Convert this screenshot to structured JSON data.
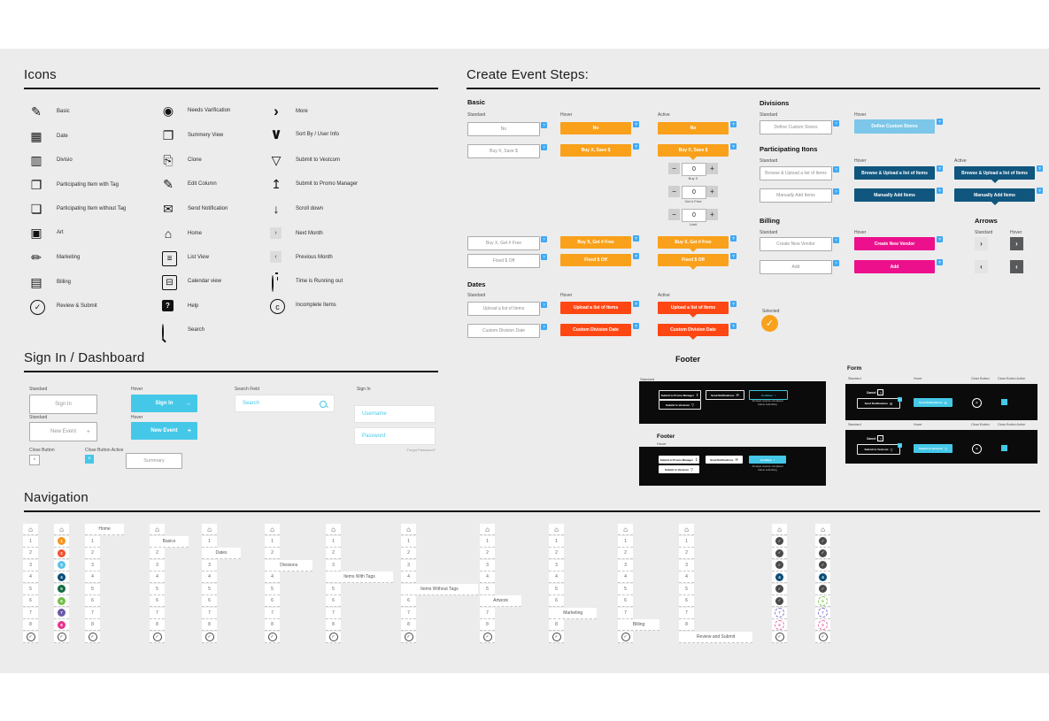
{
  "colors": {
    "cyan": "#45C8E8",
    "badge_blue": "#3FA9F5",
    "orange": "#F9A11B",
    "orange_red": "#FF4713",
    "light_blue": "#7CC7E9",
    "dark_blue": "#10567E",
    "magenta": "#EC108C",
    "arrow_gray": "#58595B",
    "navy": "#0B4E79",
    "done_gray": "#4A4A4A"
  },
  "icons": {
    "title": "Icons",
    "col1": [
      {
        "name": "basic-icon",
        "type": "glyph",
        "glyph": "✎",
        "label": "Basic"
      },
      {
        "name": "date-icon",
        "type": "glyph",
        "glyph": "▦",
        "label": "Date"
      },
      {
        "name": "divisio-icon",
        "type": "glyph",
        "glyph": "▥",
        "label": "Divisio"
      },
      {
        "name": "participating-item-with-tag-icon",
        "type": "glyph",
        "glyph": "❐",
        "label": "Participating Item with Tag"
      },
      {
        "name": "participating-item-without-tag-icon",
        "type": "glyph",
        "glyph": "❏",
        "label": "Participating Item without Tag"
      },
      {
        "name": "art-icon",
        "type": "glyph",
        "glyph": "▣",
        "label": "Art"
      },
      {
        "name": "marketing-icon",
        "type": "glyph",
        "glyph": "✏",
        "label": "Marketing"
      },
      {
        "name": "billing-icon",
        "type": "glyph",
        "glyph": "▤",
        "label": "Billing"
      },
      {
        "name": "review-submit-icon",
        "type": "circle",
        "glyph": "✓",
        "label": "Review & Submit"
      }
    ],
    "col2": [
      {
        "name": "needs-verification-icon",
        "type": "glyph",
        "glyph": "◉",
        "label": "Needs Varification"
      },
      {
        "name": "summary-view-icon",
        "type": "glyph",
        "glyph": "❐",
        "label": "Summery View"
      },
      {
        "name": "clone-icon",
        "type": "glyph",
        "glyph": "⎘",
        "label": "Clone"
      },
      {
        "name": "edit-column-icon",
        "type": "glyph",
        "glyph": "✎",
        "label": "Edit Column"
      },
      {
        "name": "send-notification-icon",
        "type": "glyph",
        "glyph": "✉",
        "label": "Send Notification"
      },
      {
        "name": "home-icon",
        "type": "glyph",
        "glyph": "⌂",
        "label": "Home"
      },
      {
        "name": "list-view-icon",
        "type": "boxed",
        "glyph": "≡",
        "label": "List View"
      },
      {
        "name": "calendar-view-icon",
        "type": "boxed",
        "glyph": "⊟",
        "label": "Calendar view"
      },
      {
        "name": "help-icon",
        "type": "help",
        "glyph": "?",
        "label": "Help"
      },
      {
        "name": "search-icon",
        "type": "mag",
        "glyph": "",
        "label": "Search"
      }
    ],
    "col3": [
      {
        "name": "more-icon",
        "type": "bold",
        "glyph": "›",
        "label": "More"
      },
      {
        "name": "sort-by-user-info-icon",
        "type": "bold",
        "glyph": "∨",
        "label": "Sort By / User Info"
      },
      {
        "name": "submit-to-vestcom-icon",
        "type": "glyph",
        "glyph": "▽",
        "label": "Submit to Vestcom"
      },
      {
        "name": "submit-to-promo-manager-icon",
        "type": "glyph",
        "glyph": "↥",
        "label": "Submit to Promo Manager"
      },
      {
        "name": "scroll-down-icon",
        "type": "glyph",
        "glyph": "↓",
        "label": "Scroll down"
      },
      {
        "name": "next-month-icon",
        "type": "minibtn",
        "glyph": "›",
        "label": "Next Month"
      },
      {
        "name": "previous-month-icon",
        "type": "minibtn",
        "glyph": "‹",
        "label": "Previous Month"
      },
      {
        "name": "time-running-out-icon",
        "type": "timer",
        "glyph": "",
        "label": "Time is Running out"
      },
      {
        "name": "incomplete-items-icon",
        "type": "circle",
        "glyph": "c",
        "label": "Incomplete Items"
      }
    ]
  },
  "create_event": {
    "title": "Create Event Steps:",
    "basic": {
      "heading": "Basic",
      "col_labels": [
        "Standard",
        "Hover",
        "Active"
      ],
      "group1": [
        "No",
        "Buy X, Save $"
      ],
      "group2": [
        "Buy X, Get # Free",
        "Fixed $ Off"
      ],
      "steppers": [
        {
          "value": "0",
          "label": "Buy X"
        },
        {
          "value": "0",
          "label": "Get # Free"
        },
        {
          "value": "0",
          "label": "Limit"
        }
      ],
      "help_badge": "?",
      "minus": "−",
      "plus": "+"
    },
    "dates": {
      "heading": "Dates",
      "col_labels": [
        "Standard",
        "Hover",
        "Active"
      ],
      "buttons": [
        "Upload a list of Items",
        "Custom Division Date"
      ]
    },
    "divisions": {
      "heading": "Divisions",
      "col_labels": [
        "Standard",
        "Hover"
      ],
      "buttons": [
        "Define Custom Stores"
      ]
    },
    "participating": {
      "heading": "Participating Itons",
      "col_labels": [
        "Standard",
        "Hover",
        "Active"
      ],
      "buttons": [
        "Browse & Upload a list of Items",
        "Manually Add Items"
      ]
    },
    "billing": {
      "heading": "Billing",
      "col_labels": [
        "Standard",
        "Hover"
      ],
      "buttons": [
        "Create New Vendor",
        "Add"
      ]
    },
    "arrows": {
      "heading": "Arrows",
      "col_labels": [
        "Standard",
        "Hover"
      ],
      "glyphs": [
        "›",
        "‹"
      ]
    },
    "selected": {
      "label": "Selected",
      "glyph": "✓"
    }
  },
  "footer": {
    "heading": "Footer",
    "standard_label": "Standard",
    "hover_heading": "Footer",
    "hover_label": "Hover",
    "btn_promo": "Submit to Promo Manager",
    "btn_notifications": "Send Notifications",
    "btn_continue": "Continue",
    "btn_vestcom": "Submit to Vestcom",
    "fine_print_line1": "All steps must be completed",
    "fine_print_line2": "before submitting"
  },
  "form_panel": {
    "heading": "Form",
    "col_labels": [
      "Standard",
      "Hover",
      "Close Button",
      "Close Button Active"
    ],
    "cancel_label": "Cancel",
    "row1_button": "Send Notifications",
    "row2_button": "Submit to Vestcom"
  },
  "sign_in": {
    "title": "Sign In / Dashboard",
    "standard_label": "Standard",
    "hover_label": "Hover",
    "standard_label2": "Standard",
    "hover_label2": "Hover",
    "search_field_label": "Search Field",
    "sign_in_label": "Sign In",
    "sign_in_btn": "Sign In",
    "new_event_btn": "New Event",
    "plus": "+",
    "arrow": "→",
    "search_placeholder": "Search",
    "username_placeholder": "Username",
    "password_placeholder": "Password",
    "forgot_password": "Forgot Password?",
    "close_button_label": "Close Button",
    "close_button_active_label": "Close Button Active",
    "close_glyph": "×",
    "summary_btn": "Summary"
  },
  "navigation": {
    "title": "Navigation",
    "numbers": [
      "1",
      "2",
      "3",
      "4",
      "5",
      "6",
      "7",
      "8"
    ],
    "circle_colors": [
      "#F7941E",
      "#F1502F",
      "#5BC2E7",
      "#0B4E79",
      "#116B41",
      "#72BF44",
      "#6C58A8",
      "#E9328C"
    ],
    "state_colors": {
      "done": "#4A4A4A",
      "current": "#0B4E79",
      "todo-purple": "#8578D3",
      "todo-pink": "#EC6EAD",
      "todo-green": "#7DC855"
    },
    "columns": [
      {
        "kind": "plain"
      },
      {
        "kind": "colored"
      },
      {
        "kind": "plain",
        "expand": "home",
        "label": "Home"
      },
      {
        "kind": "plain",
        "expand": "1",
        "label": "Basics"
      },
      {
        "kind": "plain",
        "expand": "2",
        "label": "Dates"
      },
      {
        "kind": "plain",
        "expand": "3",
        "label": "Divisions"
      },
      {
        "kind": "plain",
        "expand": "4",
        "label": "Items With Tags"
      },
      {
        "kind": "plain",
        "expand": "5",
        "label": "Items Without Tags"
      },
      {
        "kind": "plain",
        "expand": "6",
        "label": "Artwork"
      },
      {
        "kind": "plain",
        "expand": "7",
        "label": "Marketing"
      },
      {
        "kind": "plain",
        "expand": "8",
        "label": "Billing"
      },
      {
        "kind": "plain",
        "expand": "review",
        "label": "Review and Submit"
      },
      {
        "kind": "states",
        "states": [
          "done",
          "done",
          "done",
          "current",
          "done",
          "done",
          "todo-purple",
          "todo-pink"
        ]
      },
      {
        "kind": "states",
        "states": [
          "done",
          "done",
          "done",
          "current",
          "done",
          "todo-green",
          "todo-purple",
          "todo-pink"
        ]
      }
    ]
  }
}
